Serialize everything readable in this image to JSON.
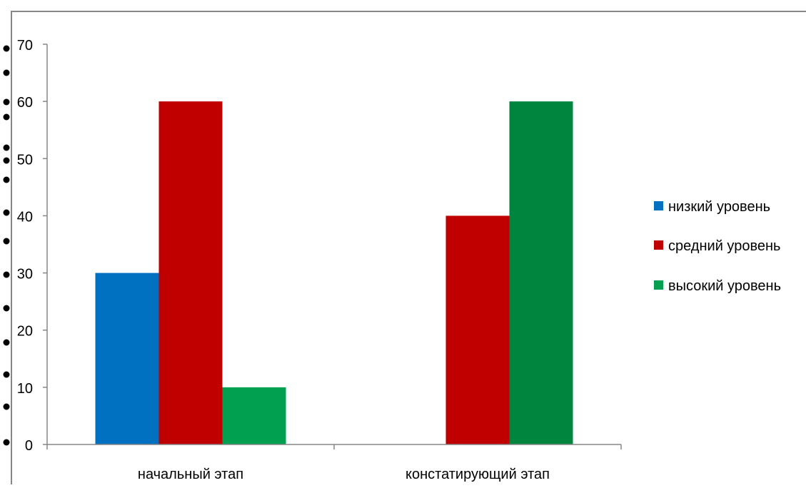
{
  "chart_data": {
    "type": "bar",
    "title": "",
    "xlabel": "",
    "ylabel": "",
    "categories": [
      "начальный этап",
      "констатирующий этап"
    ],
    "series": [
      {
        "name": "низкий уровень",
        "values": [
          30,
          0
        ],
        "color": "#0070c0"
      },
      {
        "name": "средний уровень",
        "values": [
          60,
          40
        ],
        "color": "#c00000"
      },
      {
        "name": "высокий уровень",
        "values": [
          10,
          60
        ],
        "color": "#00a050"
      }
    ],
    "bar_overrides": [
      {
        "series": 2,
        "category": 1,
        "color": "#00853f"
      }
    ],
    "ylim": [
      0,
      70
    ],
    "yticks": [
      "0",
      "10",
      "20",
      "30",
      "40",
      "50",
      "60",
      "70"
    ],
    "grid": false,
    "legend_position": "right",
    "axis_color": "#868686",
    "frame_color": "#868686"
  }
}
